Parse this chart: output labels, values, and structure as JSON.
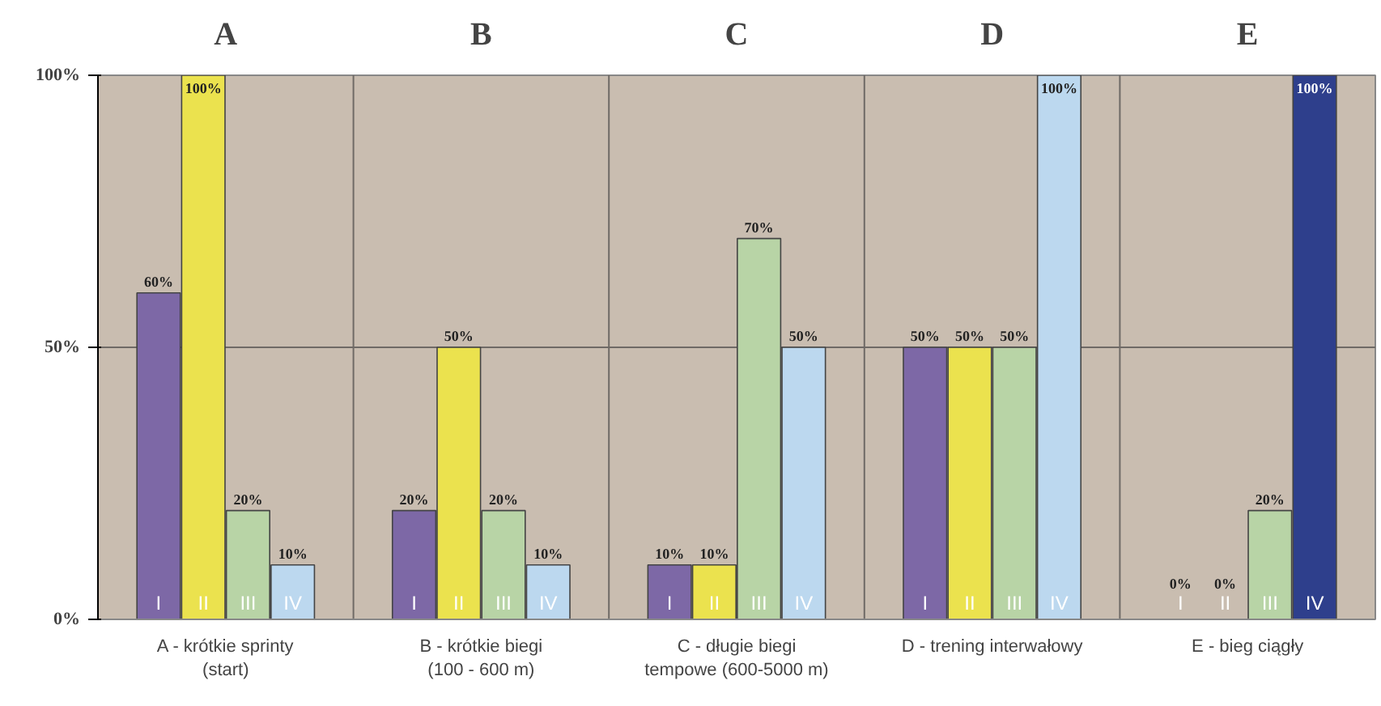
{
  "chart_data": {
    "type": "bar",
    "categories": [
      "A - krótkie sprinty\n(start)",
      "B - krótkie biegi\n(100 - 600 m)",
      "C - długie biegi\ntempowe (600-5000 m)",
      "D - trening interwałowy",
      "E - bieg ciągły"
    ],
    "series": [
      {
        "name": "I",
        "color": "#7d68a6",
        "values": [
          60,
          20,
          10,
          50,
          0
        ],
        "value_labels": [
          "60%",
          "20%",
          "10%",
          "50%",
          "0%"
        ]
      },
      {
        "name": "II",
        "color": "#ebe24e",
        "values": [
          100,
          50,
          10,
          50,
          0
        ],
        "value_labels": [
          "100%",
          "50%",
          "10%",
          "50%",
          "0%"
        ]
      },
      {
        "name": "III",
        "color": "#b8d4a6",
        "values": [
          20,
          20,
          70,
          50,
          20
        ],
        "value_labels": [
          "20%",
          "20%",
          "70%",
          "50%",
          "20%"
        ]
      },
      {
        "name": "IV",
        "color": "#bcd8ef",
        "colors": [
          null,
          null,
          null,
          null,
          "#2e3f8c"
        ],
        "values": [
          10,
          10,
          50,
          100,
          100
        ],
        "value_labels": [
          "10%",
          "10%",
          "50%",
          "100%",
          "100%"
        ]
      }
    ],
    "ylim": [
      0,
      100
    ],
    "yticks": [
      {
        "value": 0,
        "label": "0%"
      },
      {
        "value": 50,
        "label": "50%"
      },
      {
        "value": 100,
        "label": "100%"
      }
    ],
    "grid": true,
    "annotations": [
      "A",
      "B",
      "C",
      "D",
      "E"
    ]
  }
}
